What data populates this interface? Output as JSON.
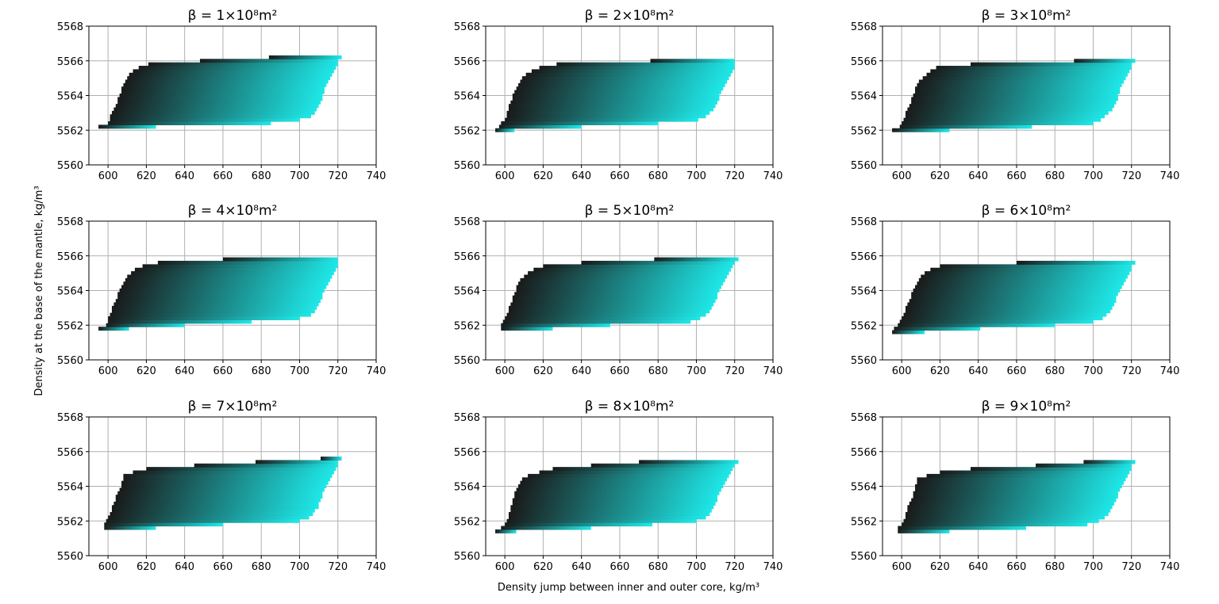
{
  "figure": {
    "xlabel": "Density jump between inner and outer core, kg/m³",
    "ylabel": "Density at the base of the mantle, kg/m³"
  },
  "colors": {
    "start": "#1a1a1a",
    "end": "#1ee8e8",
    "grid": "#b0b0b0"
  },
  "chart_data": [
    {
      "type": "heatmap",
      "title": "β = 1×10⁸m²",
      "xlim": [
        590,
        740
      ],
      "ylim": [
        5560,
        5568
      ],
      "xticks": [
        "600",
        "620",
        "640",
        "660",
        "680",
        "700",
        "720",
        "740"
      ],
      "yticks": [
        "5560",
        "5562",
        "5564",
        "5566",
        "5568"
      ],
      "shape": {
        "rows": [
          [
            5562.2,
            595,
            625
          ],
          [
            5562.4,
            600,
            685
          ],
          [
            5562.6,
            601,
            700
          ],
          [
            5562.8,
            601,
            706
          ],
          [
            5563.0,
            602,
            708
          ],
          [
            5563.2,
            603,
            709
          ],
          [
            5563.4,
            604,
            710
          ],
          [
            5563.6,
            605,
            711
          ],
          [
            5563.8,
            605,
            712
          ],
          [
            5564.0,
            606,
            712
          ],
          [
            5564.2,
            607,
            713
          ],
          [
            5564.4,
            607,
            713
          ],
          [
            5564.6,
            608,
            714
          ],
          [
            5564.8,
            609,
            715
          ],
          [
            5565.0,
            610,
            716
          ],
          [
            5565.2,
            611,
            717
          ],
          [
            5565.4,
            613,
            718
          ],
          [
            5565.6,
            616,
            719
          ],
          [
            5565.8,
            621,
            720
          ],
          [
            5566.0,
            648,
            720
          ],
          [
            5566.2,
            684,
            722
          ]
        ]
      }
    },
    {
      "type": "heatmap",
      "title": "β = 2×10⁸m²",
      "xlim": [
        590,
        740
      ],
      "ylim": [
        5560,
        5568
      ],
      "xticks": [
        "600",
        "620",
        "640",
        "660",
        "680",
        "700",
        "720",
        "740"
      ],
      "yticks": [
        "5560",
        "5562",
        "5564",
        "5566",
        "5568"
      ],
      "shape": {
        "rows": [
          [
            5562.0,
            595,
            605
          ],
          [
            5562.2,
            597,
            640
          ],
          [
            5562.4,
            598,
            680
          ],
          [
            5562.6,
            600,
            701
          ],
          [
            5562.8,
            601,
            705
          ],
          [
            5563.0,
            601,
            707
          ],
          [
            5563.2,
            602,
            709
          ],
          [
            5563.4,
            602,
            710
          ],
          [
            5563.6,
            603,
            711
          ],
          [
            5563.8,
            604,
            712
          ],
          [
            5564.0,
            604,
            712
          ],
          [
            5564.2,
            605,
            713
          ],
          [
            5564.4,
            606,
            714
          ],
          [
            5564.6,
            607,
            715
          ],
          [
            5564.8,
            608,
            716
          ],
          [
            5565.0,
            609,
            717
          ],
          [
            5565.2,
            611,
            718
          ],
          [
            5565.4,
            614,
            719
          ],
          [
            5565.6,
            618,
            720
          ],
          [
            5565.8,
            627,
            720
          ],
          [
            5566.0,
            676,
            720
          ]
        ]
      }
    },
    {
      "type": "heatmap",
      "title": "β = 3×10⁸m²",
      "xlim": [
        590,
        740
      ],
      "ylim": [
        5560,
        5568
      ],
      "xticks": [
        "600",
        "620",
        "640",
        "660",
        "680",
        "700",
        "720",
        "740"
      ],
      "yticks": [
        "5560",
        "5562",
        "5564",
        "5566",
        "5568"
      ],
      "shape": {
        "rows": [
          [
            5562.0,
            595,
            625
          ],
          [
            5562.2,
            599,
            668
          ],
          [
            5562.4,
            600,
            700
          ],
          [
            5562.6,
            601,
            704
          ],
          [
            5562.8,
            602,
            706
          ],
          [
            5563.0,
            602,
            708
          ],
          [
            5563.2,
            603,
            710
          ],
          [
            5563.4,
            604,
            711
          ],
          [
            5563.6,
            605,
            712
          ],
          [
            5563.8,
            605,
            713
          ],
          [
            5564.0,
            606,
            713
          ],
          [
            5564.2,
            607,
            714
          ],
          [
            5564.4,
            607,
            714
          ],
          [
            5564.6,
            608,
            715
          ],
          [
            5564.8,
            609,
            716
          ],
          [
            5565.0,
            611,
            717
          ],
          [
            5565.2,
            613,
            718
          ],
          [
            5565.4,
            615,
            719
          ],
          [
            5565.6,
            618,
            720
          ],
          [
            5565.8,
            636,
            720
          ],
          [
            5566.0,
            690,
            722
          ]
        ]
      }
    },
    {
      "type": "heatmap",
      "title": "β = 4×10⁸m²",
      "xlim": [
        590,
        740
      ],
      "ylim": [
        5560,
        5568
      ],
      "xticks": [
        "600",
        "620",
        "640",
        "660",
        "680",
        "700",
        "720",
        "740"
      ],
      "yticks": [
        "5560",
        "5562",
        "5564",
        "5566",
        "5568"
      ],
      "shape": {
        "rows": [
          [
            5561.8,
            595,
            611
          ],
          [
            5562.0,
            599,
            640
          ],
          [
            5562.2,
            600,
            675
          ],
          [
            5562.4,
            600,
            700
          ],
          [
            5562.6,
            601,
            706
          ],
          [
            5562.8,
            602,
            708
          ],
          [
            5563.0,
            602,
            709
          ],
          [
            5563.2,
            603,
            710
          ],
          [
            5563.4,
            604,
            711
          ],
          [
            5563.6,
            605,
            712
          ],
          [
            5563.8,
            605,
            712
          ],
          [
            5564.0,
            606,
            713
          ],
          [
            5564.2,
            607,
            714
          ],
          [
            5564.4,
            608,
            715
          ],
          [
            5564.6,
            609,
            716
          ],
          [
            5564.8,
            610,
            717
          ],
          [
            5565.0,
            612,
            718
          ],
          [
            5565.2,
            614,
            719
          ],
          [
            5565.4,
            618,
            720
          ],
          [
            5565.6,
            626,
            720
          ],
          [
            5565.8,
            660,
            720
          ]
        ]
      }
    },
    {
      "type": "heatmap",
      "title": "β = 5×10⁸m²",
      "xlim": [
        590,
        740
      ],
      "ylim": [
        5560,
        5568
      ],
      "xticks": [
        "600",
        "620",
        "640",
        "660",
        "680",
        "700",
        "720",
        "740"
      ],
      "yticks": [
        "5560",
        "5562",
        "5564",
        "5566",
        "5568"
      ],
      "shape": {
        "rows": [
          [
            5561.8,
            598,
            625
          ],
          [
            5562.0,
            598,
            655
          ],
          [
            5562.2,
            599,
            697
          ],
          [
            5562.4,
            600,
            702
          ],
          [
            5562.6,
            601,
            705
          ],
          [
            5562.8,
            602,
            707
          ],
          [
            5563.0,
            602,
            708
          ],
          [
            5563.2,
            603,
            709
          ],
          [
            5563.4,
            604,
            710
          ],
          [
            5563.6,
            604,
            711
          ],
          [
            5563.8,
            605,
            711
          ],
          [
            5564.0,
            606,
            712
          ],
          [
            5564.2,
            606,
            713
          ],
          [
            5564.4,
            607,
            714
          ],
          [
            5564.6,
            608,
            715
          ],
          [
            5564.8,
            610,
            716
          ],
          [
            5565.0,
            612,
            717
          ],
          [
            5565.2,
            615,
            718
          ],
          [
            5565.4,
            620,
            719
          ],
          [
            5565.6,
            640,
            720
          ],
          [
            5565.8,
            678,
            722
          ]
        ]
      }
    },
    {
      "type": "heatmap",
      "title": "β = 6×10⁸m²",
      "xlim": [
        590,
        740
      ],
      "ylim": [
        5560,
        5568
      ],
      "xticks": [
        "600",
        "620",
        "640",
        "660",
        "680",
        "700",
        "720",
        "740"
      ],
      "yticks": [
        "5560",
        "5562",
        "5564",
        "5566",
        "5568"
      ],
      "shape": {
        "rows": [
          [
            5561.6,
            595,
            612
          ],
          [
            5561.8,
            596,
            641
          ],
          [
            5562.0,
            598,
            680
          ],
          [
            5562.2,
            599,
            700
          ],
          [
            5562.4,
            600,
            705
          ],
          [
            5562.6,
            601,
            707
          ],
          [
            5562.8,
            602,
            709
          ],
          [
            5563.0,
            602,
            710
          ],
          [
            5563.2,
            603,
            711
          ],
          [
            5563.4,
            604,
            712
          ],
          [
            5563.6,
            605,
            712
          ],
          [
            5563.8,
            605,
            713
          ],
          [
            5564.0,
            606,
            714
          ],
          [
            5564.2,
            607,
            715
          ],
          [
            5564.4,
            608,
            716
          ],
          [
            5564.6,
            609,
            717
          ],
          [
            5564.8,
            610,
            718
          ],
          [
            5565.0,
            612,
            719
          ],
          [
            5565.2,
            615,
            720
          ],
          [
            5565.4,
            620,
            720
          ],
          [
            5565.6,
            660,
            722
          ]
        ]
      }
    },
    {
      "type": "heatmap",
      "title": "β = 7×10⁸m²",
      "xlim": [
        590,
        740
      ],
      "ylim": [
        5560,
        5568
      ],
      "xticks": [
        "600",
        "620",
        "640",
        "660",
        "680",
        "700",
        "720",
        "740"
      ],
      "yticks": [
        "5560",
        "5562",
        "5564",
        "5566",
        "5568"
      ],
      "shape": {
        "rows": [
          [
            5561.6,
            598,
            625
          ],
          [
            5561.8,
            598,
            660
          ],
          [
            5562.0,
            599,
            700
          ],
          [
            5562.2,
            600,
            705
          ],
          [
            5562.4,
            601,
            707
          ],
          [
            5562.6,
            602,
            708
          ],
          [
            5562.8,
            602,
            710
          ],
          [
            5563.0,
            603,
            710
          ],
          [
            5563.2,
            604,
            711
          ],
          [
            5563.4,
            604,
            712
          ],
          [
            5563.6,
            605,
            712
          ],
          [
            5563.8,
            606,
            713
          ],
          [
            5564.0,
            607,
            714
          ],
          [
            5564.2,
            607,
            715
          ],
          [
            5564.4,
            608,
            716
          ],
          [
            5564.6,
            608,
            717
          ],
          [
            5564.8,
            613,
            718
          ],
          [
            5565.0,
            620,
            719
          ],
          [
            5565.2,
            645,
            720
          ],
          [
            5565.4,
            677,
            720
          ],
          [
            5565.6,
            711,
            722
          ]
        ]
      }
    },
    {
      "type": "heatmap",
      "title": "β = 8×10⁸m²",
      "xlim": [
        590,
        740
      ],
      "ylim": [
        5560,
        5568
      ],
      "xticks": [
        "600",
        "620",
        "640",
        "660",
        "680",
        "700",
        "720",
        "740"
      ],
      "yticks": [
        "5560",
        "5562",
        "5564",
        "5566",
        "5568"
      ],
      "shape": {
        "rows": [
          [
            5561.4,
            595,
            606
          ],
          [
            5561.6,
            598,
            645
          ],
          [
            5561.8,
            600,
            677
          ],
          [
            5562.0,
            601,
            700
          ],
          [
            5562.2,
            602,
            705
          ],
          [
            5562.4,
            602,
            707
          ],
          [
            5562.6,
            603,
            708
          ],
          [
            5562.8,
            603,
            709
          ],
          [
            5563.0,
            604,
            710
          ],
          [
            5563.2,
            604,
            711
          ],
          [
            5563.4,
            605,
            711
          ],
          [
            5563.6,
            605,
            712
          ],
          [
            5563.8,
            606,
            713
          ],
          [
            5564.0,
            607,
            714
          ],
          [
            5564.2,
            608,
            715
          ],
          [
            5564.4,
            609,
            716
          ],
          [
            5564.6,
            612,
            717
          ],
          [
            5564.8,
            618,
            718
          ],
          [
            5565.0,
            625,
            719
          ],
          [
            5565.2,
            645,
            720
          ],
          [
            5565.4,
            670,
            722
          ]
        ]
      }
    },
    {
      "type": "heatmap",
      "title": "β = 9×10⁸m²",
      "xlim": [
        590,
        740
      ],
      "ylim": [
        5560,
        5568
      ],
      "xticks": [
        "600",
        "620",
        "640",
        "660",
        "680",
        "700",
        "720",
        "740"
      ],
      "yticks": [
        "5560",
        "5562",
        "5564",
        "5566",
        "5568"
      ],
      "shape": {
        "rows": [
          [
            5561.4,
            598,
            625
          ],
          [
            5561.6,
            598,
            665
          ],
          [
            5561.8,
            600,
            697
          ],
          [
            5562.0,
            601,
            703
          ],
          [
            5562.2,
            602,
            706
          ],
          [
            5562.4,
            602,
            708
          ],
          [
            5562.6,
            603,
            709
          ],
          [
            5562.8,
            603,
            710
          ],
          [
            5563.0,
            604,
            711
          ],
          [
            5563.2,
            605,
            712
          ],
          [
            5563.4,
            606,
            713
          ],
          [
            5563.6,
            606,
            713
          ],
          [
            5563.8,
            607,
            714
          ],
          [
            5564.0,
            607,
            715
          ],
          [
            5564.2,
            608,
            716
          ],
          [
            5564.4,
            608,
            717
          ],
          [
            5564.6,
            613,
            718
          ],
          [
            5564.8,
            620,
            719
          ],
          [
            5565.0,
            636,
            720
          ],
          [
            5565.2,
            670,
            720
          ],
          [
            5565.4,
            695,
            722
          ]
        ]
      }
    }
  ]
}
